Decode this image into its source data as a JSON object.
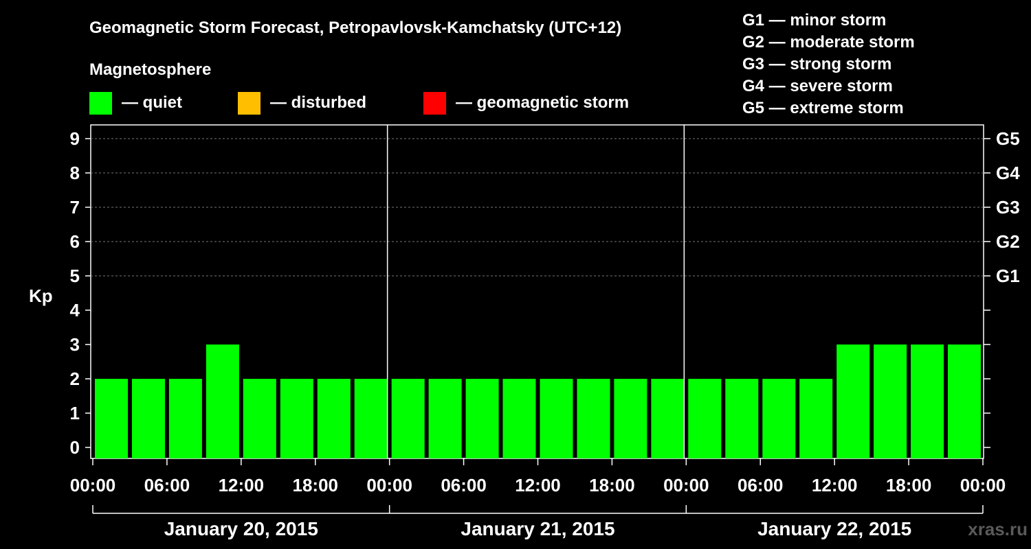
{
  "chart_data": {
    "type": "bar",
    "title": "Geomagnetic Storm Forecast, Petropavlovsk-Kamchatsky (UTC+12)",
    "ylabel": "Kp",
    "ylim": [
      0,
      9
    ],
    "yticks": [
      "0",
      "1",
      "2",
      "3",
      "4",
      "5",
      "6",
      "7",
      "8",
      "9"
    ],
    "storm_levels": [
      {
        "kp": 5,
        "label": "G1"
      },
      {
        "kp": 6,
        "label": "G2"
      },
      {
        "kp": 7,
        "label": "G3"
      },
      {
        "kp": 8,
        "label": "G4"
      },
      {
        "kp": 9,
        "label": "G5"
      }
    ],
    "storm_legend": [
      "G1 — minor storm",
      "G2 — moderate storm",
      "G3 — strong storm",
      "G4 — severe storm",
      "G5 — extreme storm"
    ],
    "magnetosphere_title": "Magnetosphere",
    "legend": [
      {
        "label": "— quiet",
        "color": "#00ff00"
      },
      {
        "label": "— disturbed",
        "color": "#ffbf00"
      },
      {
        "label": "— geomagnetic storm",
        "color": "#ff0000"
      }
    ],
    "xticks": [
      "00:00",
      "06:00",
      "12:00",
      "18:00",
      "00:00",
      "06:00",
      "12:00",
      "18:00",
      "00:00",
      "06:00",
      "12:00",
      "18:00",
      "00:00"
    ],
    "days": [
      "January 20, 2015",
      "January 21, 2015",
      "January 22, 2015"
    ],
    "interval_hours": 3,
    "values": [
      2,
      2,
      2,
      3,
      2,
      2,
      2,
      2,
      2,
      2,
      2,
      2,
      2,
      2,
      2,
      2,
      2,
      2,
      2,
      2,
      3,
      3,
      3,
      3
    ],
    "bar_colors": [
      "#00ff00",
      "#00ff00",
      "#00ff00",
      "#00ff00",
      "#00ff00",
      "#00ff00",
      "#00ff00",
      "#00ff00",
      "#00ff00",
      "#00ff00",
      "#00ff00",
      "#00ff00",
      "#00ff00",
      "#00ff00",
      "#00ff00",
      "#00ff00",
      "#00ff00",
      "#00ff00",
      "#00ff00",
      "#00ff00",
      "#00ff00",
      "#00ff00",
      "#00ff00",
      "#00ff00"
    ],
    "watermark": "xras.ru"
  }
}
